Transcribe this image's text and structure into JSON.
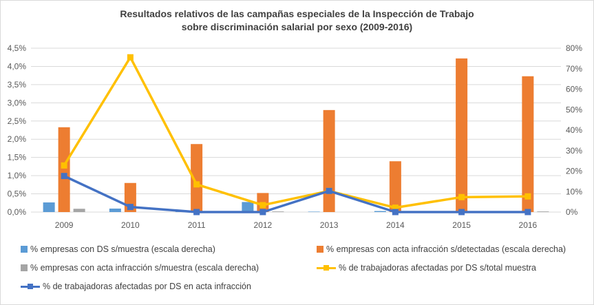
{
  "chart_data": {
    "type": "bar",
    "title_line1": "Resultados relativos de las campañas especiales de la Inspección de Trabajo",
    "title_line2": "sobre discriminación salarial por sexo (2009-2016)",
    "categories": [
      "2009",
      "2010",
      "2011",
      "2012",
      "2013",
      "2014",
      "2015",
      "2016"
    ],
    "left_axis": {
      "range": [
        0,
        4.5
      ],
      "ticks": [
        "0,0%",
        "0,5%",
        "1,0%",
        "1,5%",
        "2,0%",
        "2,5%",
        "3,0%",
        "3,5%",
        "4,0%",
        "4,5%"
      ]
    },
    "right_axis": {
      "range": [
        0,
        80
      ],
      "ticks": [
        "0%",
        "10%",
        "20%",
        "30%",
        "40%",
        "50%",
        "60%",
        "70%",
        "80%"
      ]
    },
    "grid": true,
    "legend_position": "bottom",
    "series": [
      {
        "name": "% empresas con DS s/muestra (escala derecha)",
        "kind": "bar",
        "axis": "right",
        "color": "#5b9bd5",
        "values": [
          4.7,
          1.7,
          0.3,
          4.9,
          0.2,
          0.5,
          0.5,
          0.2
        ]
      },
      {
        "name": "% empresas con acta infracción s/detectadas (escala derecha)",
        "kind": "bar",
        "axis": "right",
        "color": "#ed7d31",
        "values": [
          41.4,
          14.2,
          33.2,
          9.3,
          49.8,
          24.8,
          75.0,
          66.3
        ]
      },
      {
        "name": "% empresas con acta infracción s/muestra (escala derecha)",
        "kind": "bar",
        "axis": "right",
        "color": "#a5a5a5",
        "values": [
          1.6,
          0,
          0.1,
          0.3,
          0,
          0.1,
          0.1,
          0.3
        ]
      },
      {
        "name": "% de trabajadoras afectadas por DS s/total muestra",
        "kind": "line",
        "axis": "left",
        "color": "#ffc000",
        "values": [
          1.28,
          4.25,
          0.76,
          0.19,
          0.58,
          0.12,
          0.41,
          0.43
        ]
      },
      {
        "name": "% de trabajadoras afectadas por DS en acta infracción",
        "kind": "line",
        "axis": "left",
        "color": "#4472c4",
        "values": [
          0.99,
          0.14,
          0.0,
          0.0,
          0.58,
          0.0,
          0.0,
          0.0
        ]
      }
    ]
  }
}
